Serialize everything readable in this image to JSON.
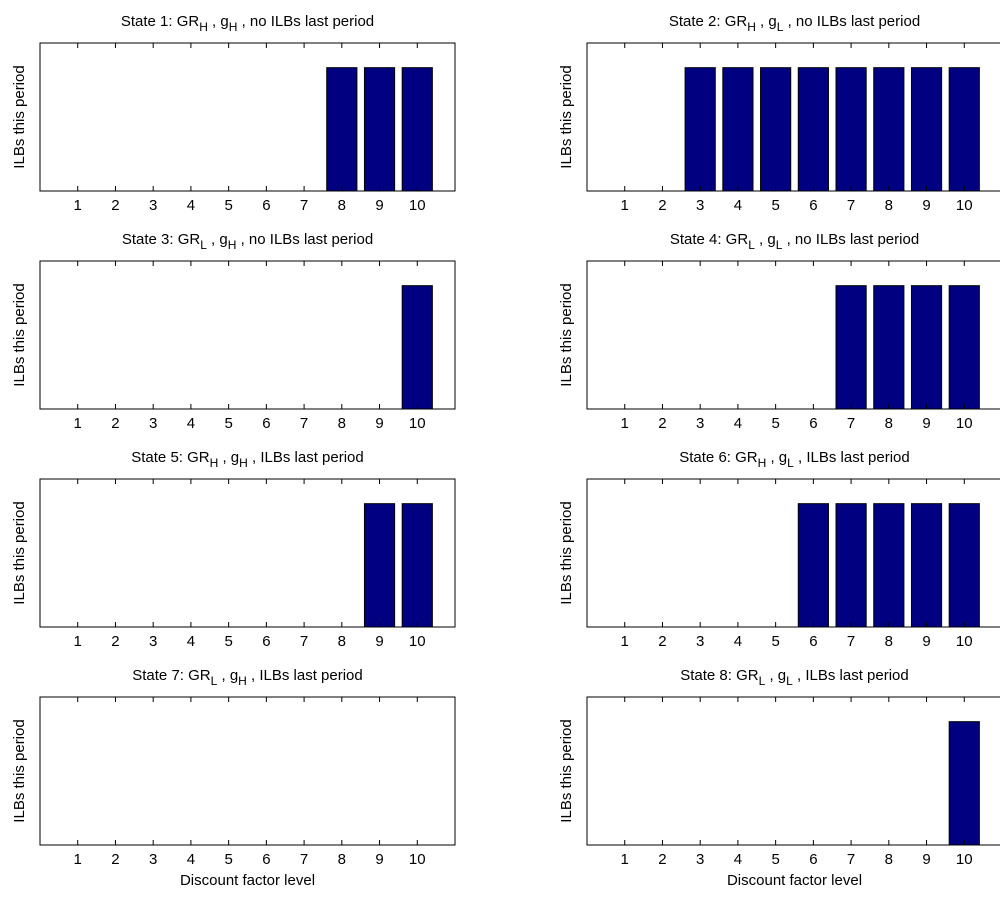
{
  "colors": {
    "bar": "#000080",
    "axis": "#000000",
    "background": "#ffffff"
  },
  "chart_data": [
    {
      "type": "bar",
      "title": {
        "prefix": "State 1: GR",
        "sub1": "H",
        "mid": " , g",
        "sub2": "H",
        "suffix": " , no ILBs last period"
      },
      "ylabel": "ILBs this period",
      "xlabel": "",
      "categories": [
        "1",
        "2",
        "3",
        "4",
        "5",
        "6",
        "7",
        "8",
        "9",
        "10"
      ],
      "values": [
        0,
        0,
        0,
        0,
        0,
        0,
        0,
        1,
        1,
        1
      ],
      "ylim": [
        0,
        1.2
      ],
      "grid": false
    },
    {
      "type": "bar",
      "title": {
        "prefix": "State 2: GR",
        "sub1": "H",
        "mid": " , g",
        "sub2": "L",
        "suffix": " , no ILBs last period"
      },
      "ylabel": "ILBs this period",
      "xlabel": "",
      "categories": [
        "1",
        "2",
        "3",
        "4",
        "5",
        "6",
        "7",
        "8",
        "9",
        "10"
      ],
      "values": [
        0,
        0,
        1,
        1,
        1,
        1,
        1,
        1,
        1,
        1
      ],
      "ylim": [
        0,
        1.2
      ],
      "grid": false
    },
    {
      "type": "bar",
      "title": {
        "prefix": "State 3: GR",
        "sub1": "L",
        "mid": " , g",
        "sub2": "H",
        "suffix": " , no ILBs last period"
      },
      "ylabel": "ILBs this period",
      "xlabel": "",
      "categories": [
        "1",
        "2",
        "3",
        "4",
        "5",
        "6",
        "7",
        "8",
        "9",
        "10"
      ],
      "values": [
        0,
        0,
        0,
        0,
        0,
        0,
        0,
        0,
        0,
        1
      ],
      "ylim": [
        0,
        1.2
      ],
      "grid": false
    },
    {
      "type": "bar",
      "title": {
        "prefix": "State 4: GR",
        "sub1": "L",
        "mid": " , g",
        "sub2": "L",
        "suffix": " , no ILBs last period"
      },
      "ylabel": "ILBs this period",
      "xlabel": "",
      "categories": [
        "1",
        "2",
        "3",
        "4",
        "5",
        "6",
        "7",
        "8",
        "9",
        "10"
      ],
      "values": [
        0,
        0,
        0,
        0,
        0,
        0,
        1,
        1,
        1,
        1
      ],
      "ylim": [
        0,
        1.2
      ],
      "grid": false
    },
    {
      "type": "bar",
      "title": {
        "prefix": "State 5: GR",
        "sub1": "H",
        "mid": " , g",
        "sub2": "H",
        "suffix": " , ILBs last period"
      },
      "ylabel": "ILBs this period",
      "xlabel": "",
      "categories": [
        "1",
        "2",
        "3",
        "4",
        "5",
        "6",
        "7",
        "8",
        "9",
        "10"
      ],
      "values": [
        0,
        0,
        0,
        0,
        0,
        0,
        0,
        0,
        1,
        1
      ],
      "ylim": [
        0,
        1.2
      ],
      "grid": false
    },
    {
      "type": "bar",
      "title": {
        "prefix": "State 6: GR",
        "sub1": "H",
        "mid": " , g",
        "sub2": "L",
        "suffix": " , ILBs last period"
      },
      "ylabel": "ILBs this period",
      "xlabel": "",
      "categories": [
        "1",
        "2",
        "3",
        "4",
        "5",
        "6",
        "7",
        "8",
        "9",
        "10"
      ],
      "values": [
        0,
        0,
        0,
        0,
        0,
        1,
        1,
        1,
        1,
        1
      ],
      "ylim": [
        0,
        1.2
      ],
      "grid": false
    },
    {
      "type": "bar",
      "title": {
        "prefix": "State 7: GR",
        "sub1": "L",
        "mid": " , g",
        "sub2": "H",
        "suffix": " , ILBs last period"
      },
      "ylabel": "ILBs this period",
      "xlabel": "Discount factor level",
      "categories": [
        "1",
        "2",
        "3",
        "4",
        "5",
        "6",
        "7",
        "8",
        "9",
        "10"
      ],
      "values": [
        0,
        0,
        0,
        0,
        0,
        0,
        0,
        0,
        0,
        0
      ],
      "ylim": [
        0,
        1.2
      ],
      "grid": false
    },
    {
      "type": "bar",
      "title": {
        "prefix": "State 8: GR",
        "sub1": "L",
        "mid": " , g",
        "sub2": "L",
        "suffix": " , ILBs last period"
      },
      "ylabel": "ILBs this period",
      "xlabel": "Discount factor level",
      "categories": [
        "1",
        "2",
        "3",
        "4",
        "5",
        "6",
        "7",
        "8",
        "9",
        "10"
      ],
      "values": [
        0,
        0,
        0,
        0,
        0,
        0,
        0,
        0,
        0,
        1
      ],
      "ylim": [
        0,
        1.2
      ],
      "grid": false
    }
  ]
}
